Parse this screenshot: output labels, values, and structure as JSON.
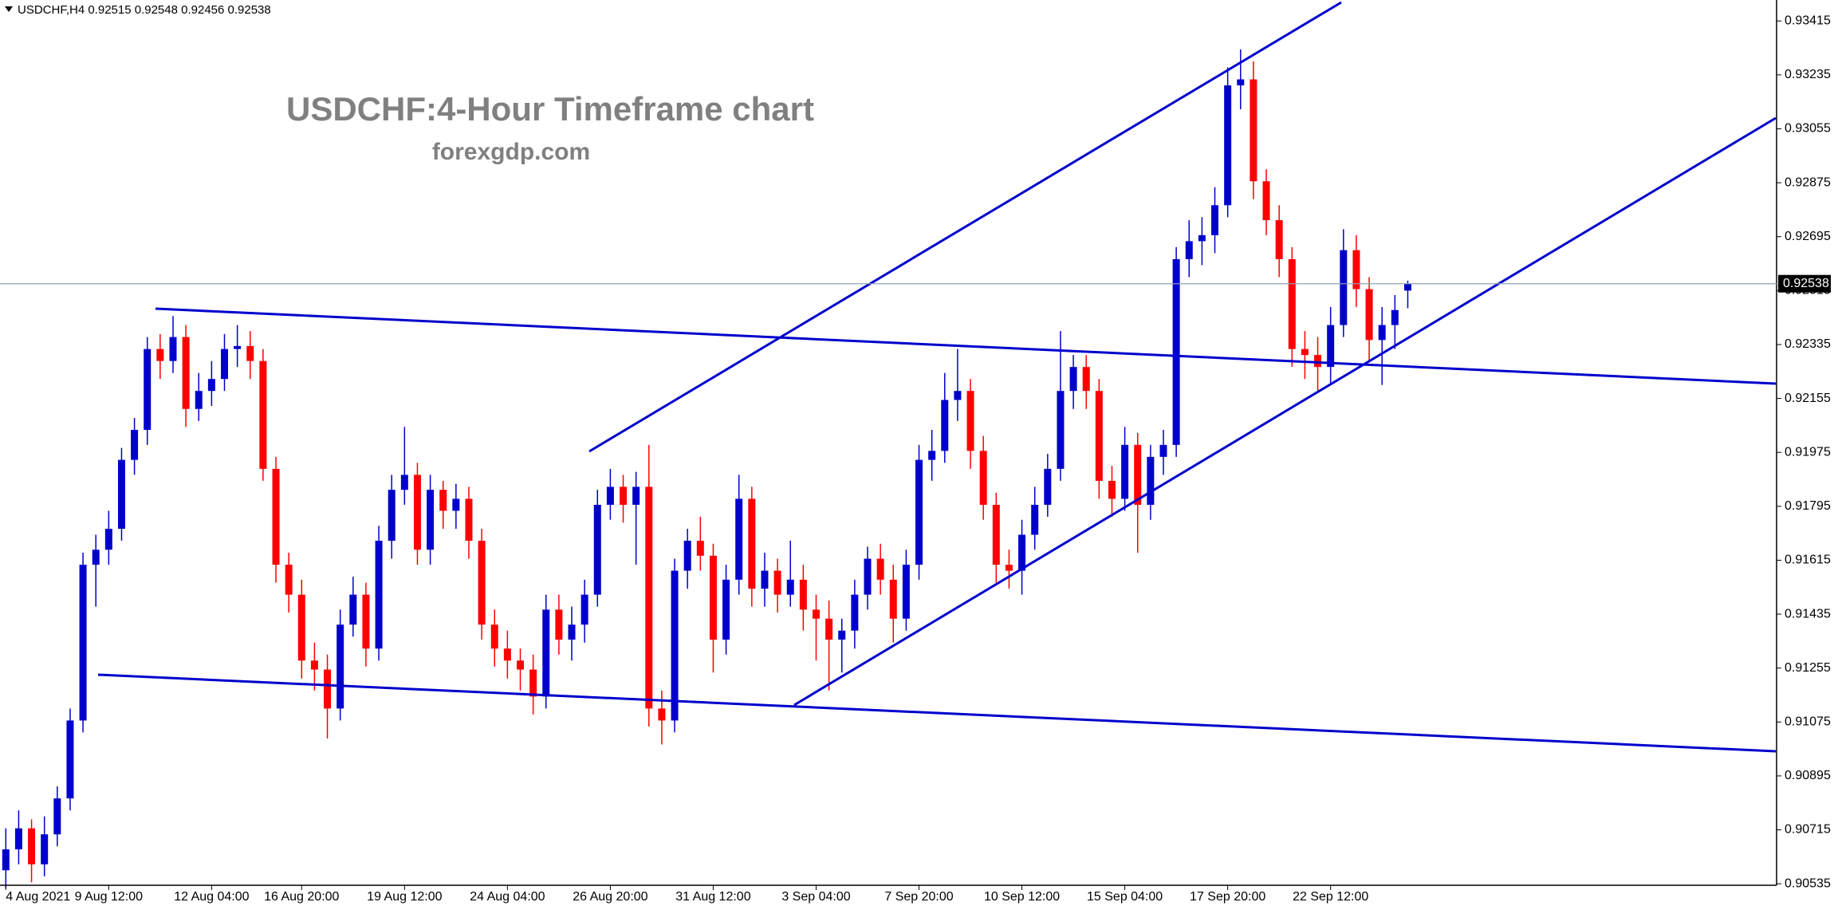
{
  "chart_data": {
    "type": "candlestick",
    "symbol_header": "USDCHF,H4  0.92515 0.92548 0.92456 0.92538",
    "title": "USDCHF:4-Hour Timeframe chart",
    "subtitle": "forexgdp.com",
    "up_color": "#0000cc",
    "down_color": "#ff0000",
    "last_price": 0.92538,
    "ylim": [
      0.9053,
      0.93485
    ],
    "yticks": [
      0.90535,
      0.90715,
      0.90895,
      0.91075,
      0.91255,
      0.91435,
      0.91615,
      0.91795,
      0.91975,
      0.92155,
      0.92335,
      0.92515,
      0.92695,
      0.92875,
      0.93055,
      0.93235,
      0.93415
    ],
    "xticks": [
      {
        "value": 0,
        "label": "4 Aug 2021"
      },
      {
        "value": 8,
        "label": "9 Aug 12:00"
      },
      {
        "value": 16,
        "label": "12 Aug 04:00"
      },
      {
        "value": 23,
        "label": "16 Aug 20:00"
      },
      {
        "value": 31,
        "label": "19 Aug 12:00"
      },
      {
        "value": 39,
        "label": "24 Aug 04:00"
      },
      {
        "value": 47,
        "label": "26 Aug 20:00"
      },
      {
        "value": 55,
        "label": "31 Aug 12:00"
      },
      {
        "value": 63,
        "label": "3 Sep 04:00"
      },
      {
        "value": 71,
        "label": "7 Sep 20:00"
      },
      {
        "value": 79,
        "label": "10 Sep 12:00"
      },
      {
        "value": 87,
        "label": "15 Sep 04:00"
      },
      {
        "value": 95,
        "label": "17 Sep 20:00"
      },
      {
        "value": 103,
        "label": "22 Sep 12:00"
      }
    ],
    "ohlc": [
      [
        0.9058,
        0.9072,
        0.9052,
        0.9065
      ],
      [
        0.9065,
        0.9078,
        0.906,
        0.9072
      ],
      [
        0.9072,
        0.9075,
        0.9054,
        0.906
      ],
      [
        0.906,
        0.9076,
        0.9056,
        0.907
      ],
      [
        0.907,
        0.9086,
        0.9066,
        0.9082
      ],
      [
        0.9082,
        0.9112,
        0.9078,
        0.9108
      ],
      [
        0.9108,
        0.9164,
        0.9104,
        0.916
      ],
      [
        0.916,
        0.917,
        0.9146,
        0.9165
      ],
      [
        0.9165,
        0.9178,
        0.916,
        0.9172
      ],
      [
        0.9172,
        0.9199,
        0.9168,
        0.9195
      ],
      [
        0.9195,
        0.9209,
        0.919,
        0.9205
      ],
      [
        0.9205,
        0.9236,
        0.92,
        0.9232
      ],
      [
        0.9232,
        0.9237,
        0.9222,
        0.9228
      ],
      [
        0.9228,
        0.9243,
        0.9224,
        0.9236
      ],
      [
        0.9236,
        0.924,
        0.9206,
        0.9212
      ],
      [
        0.9212,
        0.9224,
        0.9208,
        0.9218
      ],
      [
        0.9218,
        0.9228,
        0.9213,
        0.9222
      ],
      [
        0.9222,
        0.9237,
        0.9218,
        0.9232
      ],
      [
        0.9232,
        0.924,
        0.9226,
        0.9233
      ],
      [
        0.9233,
        0.9238,
        0.9222,
        0.9228
      ],
      [
        0.9228,
        0.9232,
        0.9188,
        0.9192
      ],
      [
        0.9192,
        0.9196,
        0.9154,
        0.916
      ],
      [
        0.916,
        0.9164,
        0.9144,
        0.915
      ],
      [
        0.915,
        0.9155,
        0.9122,
        0.9128
      ],
      [
        0.9128,
        0.9134,
        0.9118,
        0.9125
      ],
      [
        0.9125,
        0.913,
        0.9102,
        0.9112
      ],
      [
        0.9112,
        0.9145,
        0.9108,
        0.914
      ],
      [
        0.914,
        0.9156,
        0.9136,
        0.915
      ],
      [
        0.915,
        0.9154,
        0.9126,
        0.9132
      ],
      [
        0.9132,
        0.9173,
        0.9128,
        0.9168
      ],
      [
        0.9168,
        0.919,
        0.9162,
        0.9185
      ],
      [
        0.9185,
        0.9206,
        0.918,
        0.919
      ],
      [
        0.919,
        0.9194,
        0.916,
        0.9165
      ],
      [
        0.9165,
        0.919,
        0.916,
        0.9185
      ],
      [
        0.9185,
        0.9188,
        0.9172,
        0.9178
      ],
      [
        0.9178,
        0.9187,
        0.9172,
        0.9182
      ],
      [
        0.9182,
        0.9186,
        0.9162,
        0.9168
      ],
      [
        0.9168,
        0.9172,
        0.9135,
        0.914
      ],
      [
        0.914,
        0.9145,
        0.9126,
        0.9132
      ],
      [
        0.9132,
        0.9138,
        0.9122,
        0.9128
      ],
      [
        0.9128,
        0.9132,
        0.9118,
        0.9125
      ],
      [
        0.9125,
        0.913,
        0.911,
        0.9116
      ],
      [
        0.9116,
        0.915,
        0.9112,
        0.9145
      ],
      [
        0.9145,
        0.915,
        0.913,
        0.9135
      ],
      [
        0.9135,
        0.9146,
        0.9128,
        0.914
      ],
      [
        0.914,
        0.9155,
        0.9134,
        0.915
      ],
      [
        0.915,
        0.9185,
        0.9146,
        0.918
      ],
      [
        0.918,
        0.9192,
        0.9175,
        0.9186
      ],
      [
        0.9186,
        0.919,
        0.9174,
        0.918
      ],
      [
        0.918,
        0.9191,
        0.916,
        0.9186
      ],
      [
        0.9186,
        0.92,
        0.9106,
        0.9112
      ],
      [
        0.9112,
        0.9118,
        0.91,
        0.9108
      ],
      [
        0.9108,
        0.9162,
        0.9104,
        0.9158
      ],
      [
        0.9158,
        0.9172,
        0.9152,
        0.9168
      ],
      [
        0.9168,
        0.9176,
        0.9158,
        0.9163
      ],
      [
        0.9163,
        0.9167,
        0.9124,
        0.9135
      ],
      [
        0.9135,
        0.916,
        0.913,
        0.9155
      ],
      [
        0.9155,
        0.919,
        0.915,
        0.9182
      ],
      [
        0.9182,
        0.9186,
        0.9146,
        0.9152
      ],
      [
        0.9152,
        0.9164,
        0.9146,
        0.9158
      ],
      [
        0.9158,
        0.9162,
        0.9144,
        0.915
      ],
      [
        0.915,
        0.9168,
        0.9146,
        0.9155
      ],
      [
        0.9155,
        0.916,
        0.9138,
        0.9145
      ],
      [
        0.9145,
        0.915,
        0.9128,
        0.9142
      ],
      [
        0.9142,
        0.9148,
        0.9118,
        0.9135
      ],
      [
        0.9135,
        0.9142,
        0.9124,
        0.9138
      ],
      [
        0.9138,
        0.9155,
        0.9132,
        0.915
      ],
      [
        0.915,
        0.9166,
        0.9145,
        0.9162
      ],
      [
        0.9162,
        0.9167,
        0.915,
        0.9155
      ],
      [
        0.9155,
        0.916,
        0.9134,
        0.9142
      ],
      [
        0.9142,
        0.9165,
        0.9138,
        0.916
      ],
      [
        0.916,
        0.92,
        0.9155,
        0.9195
      ],
      [
        0.9195,
        0.9205,
        0.9188,
        0.9198
      ],
      [
        0.9198,
        0.9224,
        0.9194,
        0.9215
      ],
      [
        0.9215,
        0.9232,
        0.9208,
        0.9218
      ],
      [
        0.9218,
        0.9222,
        0.9192,
        0.9198
      ],
      [
        0.9198,
        0.9203,
        0.9175,
        0.918
      ],
      [
        0.918,
        0.9184,
        0.9154,
        0.916
      ],
      [
        0.916,
        0.9165,
        0.9152,
        0.9158
      ],
      [
        0.9158,
        0.9175,
        0.915,
        0.917
      ],
      [
        0.917,
        0.9186,
        0.9165,
        0.918
      ],
      [
        0.918,
        0.9197,
        0.9176,
        0.9192
      ],
      [
        0.9192,
        0.9238,
        0.9188,
        0.9218
      ],
      [
        0.9218,
        0.923,
        0.9212,
        0.9226
      ],
      [
        0.9226,
        0.923,
        0.9212,
        0.9218
      ],
      [
        0.9218,
        0.9222,
        0.9182,
        0.9188
      ],
      [
        0.9188,
        0.9193,
        0.9176,
        0.9182
      ],
      [
        0.9182,
        0.9206,
        0.9178,
        0.92
      ],
      [
        0.92,
        0.9204,
        0.9164,
        0.918
      ],
      [
        0.918,
        0.92,
        0.9175,
        0.9196
      ],
      [
        0.9196,
        0.9205,
        0.919,
        0.92
      ],
      [
        0.92,
        0.9266,
        0.9196,
        0.9262
      ],
      [
        0.9262,
        0.9275,
        0.9256,
        0.9268
      ],
      [
        0.9268,
        0.9276,
        0.926,
        0.927
      ],
      [
        0.927,
        0.9286,
        0.9264,
        0.928
      ],
      [
        0.928,
        0.9326,
        0.9276,
        0.932
      ],
      [
        0.932,
        0.9332,
        0.9312,
        0.9322
      ],
      [
        0.9322,
        0.9328,
        0.9282,
        0.9288
      ],
      [
        0.9288,
        0.9292,
        0.927,
        0.9275
      ],
      [
        0.9275,
        0.928,
        0.9256,
        0.9262
      ],
      [
        0.9262,
        0.9266,
        0.9226,
        0.9232
      ],
      [
        0.9232,
        0.9238,
        0.9222,
        0.923
      ],
      [
        0.923,
        0.9236,
        0.9218,
        0.9226
      ],
      [
        0.9226,
        0.9246,
        0.922,
        0.924
      ],
      [
        0.924,
        0.9272,
        0.9236,
        0.9265
      ],
      [
        0.9265,
        0.927,
        0.9246,
        0.9252
      ],
      [
        0.9252,
        0.9256,
        0.9228,
        0.9235
      ],
      [
        0.9235,
        0.9246,
        0.922,
        0.924
      ],
      [
        0.924,
        0.925,
        0.9232,
        0.9245
      ],
      [
        0.92515,
        0.92548,
        0.92456,
        0.92538
      ]
    ]
  }
}
